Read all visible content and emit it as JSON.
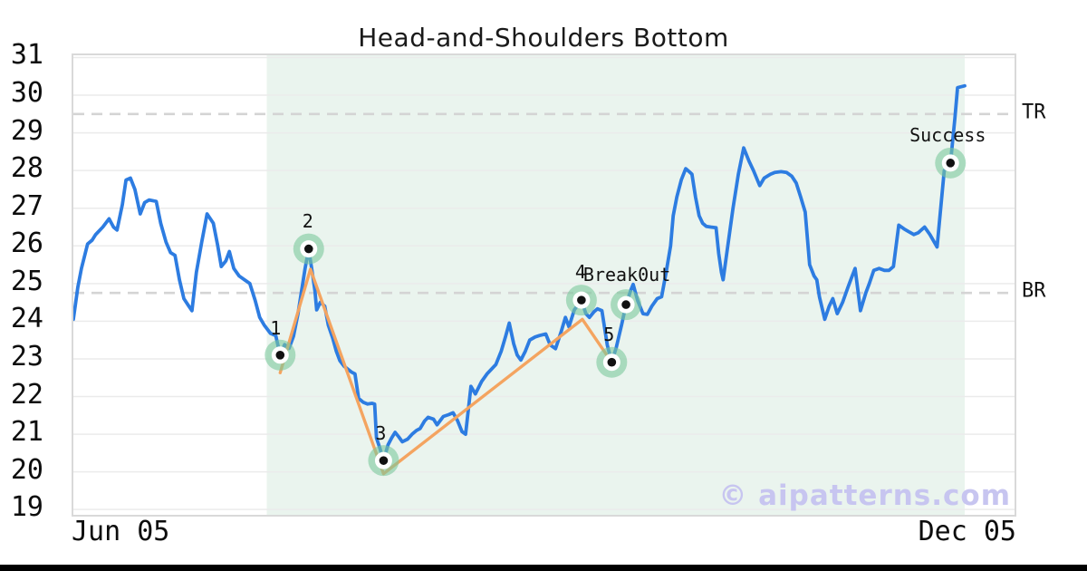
{
  "title": "Head-and-Shoulders Bottom",
  "watermark": "© aipatterns.com",
  "axes": {
    "y_ticks": [
      31,
      30,
      29,
      28,
      27,
      26,
      25,
      24,
      23,
      22,
      21,
      20,
      19
    ],
    "x_ticks": [
      "Jun 05",
      "Dec 05"
    ]
  },
  "levels": {
    "tr": {
      "label": "TR",
      "value": 29.5
    },
    "br": {
      "label": "BR",
      "value": 24.75
    }
  },
  "colors": {
    "price_line": "#2d7ce1",
    "pattern_line": "#f4a460",
    "marker_halo": "#7cc89d",
    "marker_ring": "#ffffff",
    "marker_dot": "#111111",
    "zone_fill": "#eaf4ee",
    "threshold_dash": "#d4d4d4",
    "gridline": "#ebebeb",
    "plot_border": "#d9d9d9",
    "watermark_text": "#c7c5f0",
    "footer_bar": "#000000"
  },
  "chart_data": {
    "type": "line",
    "title": "Head-and-Shoulders Bottom",
    "xlabel": "",
    "ylabel": "",
    "x_axis": {
      "start_label": "Jun 05",
      "end_label": "Dec 05",
      "unit": "percent of date span Jun 05 - Dec 05"
    },
    "ylim": [
      18.86,
      31.06
    ],
    "grid": "horizontal",
    "pattern_zone": {
      "x_start": 21.7,
      "x_end": 100
    },
    "threshold_lines": [
      {
        "id": "tr",
        "label": "TR",
        "y": 29.5
      },
      {
        "id": "br",
        "label": "BR",
        "y": 24.75
      }
    ],
    "markers": [
      {
        "id": "p1",
        "label": "1",
        "x": 23.2,
        "y": 23.1
      },
      {
        "id": "p2",
        "label": "2",
        "x": 26.4,
        "y": 25.92
      },
      {
        "id": "p3",
        "label": "3",
        "x": 34.8,
        "y": 20.3
      },
      {
        "id": "p4",
        "label": "4",
        "x": 57.0,
        "y": 24.56
      },
      {
        "id": "p5",
        "label": "5",
        "x": 60.4,
        "y": 22.91
      },
      {
        "id": "breakout",
        "label": "Break0ut",
        "x": 62.0,
        "y": 24.44
      },
      {
        "id": "success",
        "label": "Success",
        "x": 98.4,
        "y": 28.2
      }
    ],
    "series": [
      {
        "name": "price",
        "points": [
          [
            0,
            24.05
          ],
          [
            0.5,
            24.9
          ],
          [
            0.9,
            25.4
          ],
          [
            1.6,
            26.05
          ],
          [
            2.1,
            26.15
          ],
          [
            2.5,
            26.3
          ],
          [
            3.3,
            26.5
          ],
          [
            4.0,
            26.72
          ],
          [
            4.5,
            26.5
          ],
          [
            4.9,
            26.42
          ],
          [
            5.5,
            27.1
          ],
          [
            5.9,
            27.75
          ],
          [
            6.4,
            27.8
          ],
          [
            6.9,
            27.5
          ],
          [
            7.5,
            26.85
          ],
          [
            8.0,
            27.15
          ],
          [
            8.5,
            27.22
          ],
          [
            9.3,
            27.18
          ],
          [
            9.8,
            26.6
          ],
          [
            10.4,
            26.1
          ],
          [
            10.9,
            25.82
          ],
          [
            11.4,
            25.75
          ],
          [
            11.9,
            25.1
          ],
          [
            12.4,
            24.6
          ],
          [
            12.9,
            24.42
          ],
          [
            13.3,
            24.28
          ],
          [
            13.8,
            25.3
          ],
          [
            14.4,
            26.1
          ],
          [
            15.0,
            26.85
          ],
          [
            15.7,
            26.6
          ],
          [
            16.2,
            26.0
          ],
          [
            16.6,
            25.45
          ],
          [
            17.1,
            25.6
          ],
          [
            17.5,
            25.85
          ],
          [
            18.0,
            25.4
          ],
          [
            18.6,
            25.2
          ],
          [
            19.2,
            25.1
          ],
          [
            19.8,
            25.0
          ],
          [
            20.4,
            24.55
          ],
          [
            20.9,
            24.1
          ],
          [
            21.4,
            23.9
          ],
          [
            22.1,
            23.68
          ],
          [
            22.7,
            23.62
          ],
          [
            23.2,
            23.1
          ],
          [
            23.7,
            23.38
          ],
          [
            24.2,
            23.28
          ],
          [
            24.7,
            23.6
          ],
          [
            25.2,
            24.2
          ],
          [
            25.6,
            24.8
          ],
          [
            26.0,
            25.4
          ],
          [
            26.4,
            25.92
          ],
          [
            26.8,
            25.3
          ],
          [
            27.1,
            24.8
          ],
          [
            27.3,
            24.3
          ],
          [
            27.7,
            24.5
          ],
          [
            28.2,
            24.4
          ],
          [
            28.6,
            23.9
          ],
          [
            29.1,
            23.55
          ],
          [
            29.5,
            23.2
          ],
          [
            29.9,
            22.95
          ],
          [
            30.4,
            22.8
          ],
          [
            31.2,
            22.65
          ],
          [
            31.6,
            22.6
          ],
          [
            32.0,
            21.95
          ],
          [
            32.5,
            21.85
          ],
          [
            33.0,
            21.8
          ],
          [
            33.5,
            21.82
          ],
          [
            33.8,
            21.8
          ],
          [
            34.0,
            20.9
          ],
          [
            34.4,
            20.62
          ],
          [
            34.8,
            20.3
          ],
          [
            35.3,
            20.72
          ],
          [
            35.7,
            20.9
          ],
          [
            36.1,
            21.05
          ],
          [
            36.5,
            20.93
          ],
          [
            36.9,
            20.8
          ],
          [
            37.5,
            20.87
          ],
          [
            38.0,
            21.0
          ],
          [
            38.5,
            21.1
          ],
          [
            38.9,
            21.15
          ],
          [
            39.4,
            21.35
          ],
          [
            39.8,
            21.45
          ],
          [
            40.4,
            21.4
          ],
          [
            40.8,
            21.25
          ],
          [
            41.5,
            21.47
          ],
          [
            42.1,
            21.52
          ],
          [
            42.6,
            21.57
          ],
          [
            43.1,
            21.36
          ],
          [
            43.6,
            21.07
          ],
          [
            44.0,
            21.0
          ],
          [
            44.6,
            22.27
          ],
          [
            45.1,
            22.07
          ],
          [
            45.8,
            22.4
          ],
          [
            46.4,
            22.6
          ],
          [
            47.4,
            22.85
          ],
          [
            48.0,
            23.2
          ],
          [
            48.5,
            23.6
          ],
          [
            48.9,
            23.95
          ],
          [
            49.4,
            23.4
          ],
          [
            49.8,
            23.1
          ],
          [
            50.2,
            22.97
          ],
          [
            50.7,
            23.2
          ],
          [
            51.2,
            23.5
          ],
          [
            51.8,
            23.58
          ],
          [
            52.3,
            23.62
          ],
          [
            53.0,
            23.66
          ],
          [
            53.5,
            23.37
          ],
          [
            54.1,
            23.27
          ],
          [
            54.7,
            23.7
          ],
          [
            55.2,
            24.1
          ],
          [
            55.6,
            23.85
          ],
          [
            56.2,
            24.3
          ],
          [
            57.0,
            24.56
          ],
          [
            57.5,
            24.2
          ],
          [
            57.9,
            24.1
          ],
          [
            58.4,
            24.25
          ],
          [
            58.8,
            24.33
          ],
          [
            59.3,
            24.28
          ],
          [
            59.9,
            23.37
          ],
          [
            60.4,
            22.91
          ],
          [
            60.9,
            23.3
          ],
          [
            61.5,
            23.9
          ],
          [
            62.0,
            24.44
          ],
          [
            62.5,
            24.8
          ],
          [
            62.8,
            24.98
          ],
          [
            63.3,
            24.55
          ],
          [
            63.9,
            24.2
          ],
          [
            64.4,
            24.18
          ],
          [
            64.9,
            24.4
          ],
          [
            65.5,
            24.6
          ],
          [
            66.0,
            24.65
          ],
          [
            66.5,
            25.3
          ],
          [
            67.0,
            26.0
          ],
          [
            67.3,
            26.8
          ],
          [
            67.7,
            27.3
          ],
          [
            68.2,
            27.75
          ],
          [
            68.7,
            28.05
          ],
          [
            69.1,
            27.97
          ],
          [
            69.4,
            27.9
          ],
          [
            69.8,
            27.3
          ],
          [
            70.2,
            26.8
          ],
          [
            70.6,
            26.6
          ],
          [
            71.0,
            26.52
          ],
          [
            71.5,
            26.5
          ],
          [
            72.1,
            26.48
          ],
          [
            72.4,
            25.8
          ],
          [
            72.7,
            25.3
          ],
          [
            72.9,
            25.1
          ],
          [
            73.3,
            25.8
          ],
          [
            74.0,
            27.0
          ],
          [
            74.6,
            27.9
          ],
          [
            75.2,
            28.6
          ],
          [
            75.8,
            28.25
          ],
          [
            76.3,
            28.0
          ],
          [
            77.0,
            27.6
          ],
          [
            77.5,
            27.8
          ],
          [
            78.2,
            27.9
          ],
          [
            78.7,
            27.95
          ],
          [
            79.4,
            27.97
          ],
          [
            80.0,
            27.95
          ],
          [
            80.6,
            27.85
          ],
          [
            81.1,
            27.67
          ],
          [
            81.6,
            27.3
          ],
          [
            82.1,
            26.9
          ],
          [
            82.6,
            25.5
          ],
          [
            83.1,
            25.2
          ],
          [
            83.4,
            25.1
          ],
          [
            83.7,
            24.65
          ],
          [
            84.3,
            24.05
          ],
          [
            84.8,
            24.4
          ],
          [
            85.2,
            24.6
          ],
          [
            85.7,
            24.2
          ],
          [
            86.3,
            24.5
          ],
          [
            86.9,
            24.9
          ],
          [
            87.3,
            25.15
          ],
          [
            87.7,
            25.4
          ],
          [
            88.3,
            24.28
          ],
          [
            88.9,
            24.75
          ],
          [
            89.3,
            25.0
          ],
          [
            89.8,
            25.35
          ],
          [
            90.4,
            25.4
          ],
          [
            91.0,
            25.35
          ],
          [
            91.5,
            25.35
          ],
          [
            92.0,
            25.45
          ],
          [
            92.6,
            26.55
          ],
          [
            93.2,
            26.45
          ],
          [
            93.7,
            26.38
          ],
          [
            94.3,
            26.3
          ],
          [
            94.8,
            26.35
          ],
          [
            95.5,
            26.5
          ],
          [
            96.1,
            26.3
          ],
          [
            96.9,
            25.97
          ],
          [
            97.7,
            28.0
          ],
          [
            98.4,
            28.2
          ],
          [
            98.9,
            29.4
          ],
          [
            99.2,
            30.2
          ],
          [
            100,
            30.25
          ]
        ]
      },
      {
        "name": "pattern",
        "points": [
          [
            23.2,
            22.63
          ],
          [
            26.6,
            25.38
          ],
          [
            34.8,
            19.95
          ],
          [
            57.1,
            24.05
          ],
          [
            60.4,
            22.91
          ]
        ]
      }
    ]
  }
}
